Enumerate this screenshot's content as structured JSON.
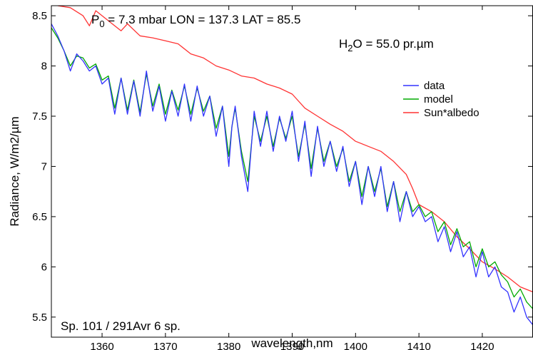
{
  "chart_data": {
    "type": "line",
    "title": "",
    "xlabel": "wavelength,nm",
    "ylabel": "Radiance, W/m2/µm",
    "xlim": [
      1352,
      1428
    ],
    "ylim": [
      5.3,
      8.6
    ],
    "xticks": [
      1360,
      1370,
      1380,
      1390,
      1400,
      1410,
      1420
    ],
    "yticks": [
      5.5,
      6,
      6.5,
      7,
      7.5,
      8,
      8.5
    ],
    "grid": false,
    "legend_position": "right",
    "annotations": {
      "p0_symbol": "P",
      "p0_sub": "0",
      "p0_rest": " = 7.3 mbar LON = 137.3 LAT = 85.5",
      "h2o_symbol": "H",
      "h2o_sub": "2",
      "h2o_rest": "O = 55.0 pr.µm",
      "spectrum_note": "Sp. 101 / 291Avr 6 sp."
    },
    "series": [
      {
        "name": "data",
        "color": "#3333ff",
        "points": [
          [
            1352,
            8.42
          ],
          [
            1353,
            8.3
          ],
          [
            1354,
            8.15
          ],
          [
            1355,
            7.95
          ],
          [
            1356,
            8.12
          ],
          [
            1357,
            8.05
          ],
          [
            1358,
            7.95
          ],
          [
            1359,
            8.0
          ],
          [
            1360,
            7.82
          ],
          [
            1361,
            7.88
          ],
          [
            1362,
            7.52
          ],
          [
            1363,
            7.88
          ],
          [
            1364,
            7.52
          ],
          [
            1365,
            7.85
          ],
          [
            1366,
            7.5
          ],
          [
            1367,
            7.95
          ],
          [
            1368,
            7.55
          ],
          [
            1369,
            7.8
          ],
          [
            1370,
            7.45
          ],
          [
            1371,
            7.75
          ],
          [
            1372,
            7.5
          ],
          [
            1373,
            7.82
          ],
          [
            1374,
            7.45
          ],
          [
            1375,
            7.8
          ],
          [
            1376,
            7.5
          ],
          [
            1377,
            7.7
          ],
          [
            1378,
            7.3
          ],
          [
            1379,
            7.6
          ],
          [
            1380,
            7.0
          ],
          [
            1380.5,
            7.4
          ],
          [
            1381,
            7.6
          ],
          [
            1382,
            7.1
          ],
          [
            1383,
            6.75
          ],
          [
            1384,
            7.55
          ],
          [
            1385,
            7.2
          ],
          [
            1386,
            7.55
          ],
          [
            1387,
            7.15
          ],
          [
            1388,
            7.5
          ],
          [
            1389,
            7.25
          ],
          [
            1390,
            7.55
          ],
          [
            1391,
            7.05
          ],
          [
            1392,
            7.45
          ],
          [
            1393,
            6.9
          ],
          [
            1394,
            7.4
          ],
          [
            1395,
            7.0
          ],
          [
            1396,
            7.25
          ],
          [
            1397,
            6.95
          ],
          [
            1398,
            7.2
          ],
          [
            1399,
            6.8
          ],
          [
            1400,
            7.05
          ],
          [
            1401,
            6.62
          ],
          [
            1402,
            7.0
          ],
          [
            1403,
            6.7
          ],
          [
            1404,
            7.0
          ],
          [
            1405,
            6.55
          ],
          [
            1406,
            6.85
          ],
          [
            1407,
            6.45
          ],
          [
            1408,
            6.75
          ],
          [
            1409,
            6.5
          ],
          [
            1410,
            6.6
          ],
          [
            1411,
            6.45
          ],
          [
            1412,
            6.5
          ],
          [
            1413,
            6.25
          ],
          [
            1414,
            6.4
          ],
          [
            1415,
            6.15
          ],
          [
            1416,
            6.35
          ],
          [
            1417,
            6.1
          ],
          [
            1418,
            6.2
          ],
          [
            1419,
            5.9
          ],
          [
            1420,
            6.15
          ],
          [
            1421,
            5.9
          ],
          [
            1422,
            6.0
          ],
          [
            1423,
            5.8
          ],
          [
            1424,
            5.75
          ],
          [
            1425,
            5.55
          ],
          [
            1426,
            5.7
          ],
          [
            1427,
            5.5
          ],
          [
            1428,
            5.42
          ]
        ]
      },
      {
        "name": "model",
        "color": "#00aa00",
        "points": [
          [
            1352,
            8.38
          ],
          [
            1353,
            8.28
          ],
          [
            1354,
            8.15
          ],
          [
            1355,
            8.0
          ],
          [
            1356,
            8.1
          ],
          [
            1357,
            8.08
          ],
          [
            1358,
            7.98
          ],
          [
            1359,
            8.02
          ],
          [
            1360,
            7.86
          ],
          [
            1361,
            7.9
          ],
          [
            1362,
            7.58
          ],
          [
            1363,
            7.88
          ],
          [
            1364,
            7.56
          ],
          [
            1365,
            7.86
          ],
          [
            1366,
            7.54
          ],
          [
            1367,
            7.92
          ],
          [
            1368,
            7.6
          ],
          [
            1369,
            7.82
          ],
          [
            1370,
            7.52
          ],
          [
            1371,
            7.76
          ],
          [
            1372,
            7.56
          ],
          [
            1373,
            7.8
          ],
          [
            1374,
            7.52
          ],
          [
            1375,
            7.78
          ],
          [
            1376,
            7.55
          ],
          [
            1377,
            7.7
          ],
          [
            1378,
            7.38
          ],
          [
            1379,
            7.6
          ],
          [
            1380,
            7.1
          ],
          [
            1380.5,
            7.4
          ],
          [
            1381,
            7.58
          ],
          [
            1382,
            7.15
          ],
          [
            1383,
            6.85
          ],
          [
            1384,
            7.5
          ],
          [
            1385,
            7.25
          ],
          [
            1386,
            7.5
          ],
          [
            1387,
            7.2
          ],
          [
            1388,
            7.48
          ],
          [
            1389,
            7.28
          ],
          [
            1390,
            7.5
          ],
          [
            1391,
            7.1
          ],
          [
            1392,
            7.42
          ],
          [
            1393,
            6.98
          ],
          [
            1394,
            7.38
          ],
          [
            1395,
            7.05
          ],
          [
            1396,
            7.25
          ],
          [
            1397,
            7.0
          ],
          [
            1398,
            7.18
          ],
          [
            1399,
            6.85
          ],
          [
            1400,
            7.05
          ],
          [
            1401,
            6.7
          ],
          [
            1402,
            7.0
          ],
          [
            1403,
            6.75
          ],
          [
            1404,
            6.98
          ],
          [
            1405,
            6.6
          ],
          [
            1406,
            6.85
          ],
          [
            1407,
            6.55
          ],
          [
            1408,
            6.75
          ],
          [
            1409,
            6.55
          ],
          [
            1410,
            6.62
          ],
          [
            1411,
            6.5
          ],
          [
            1412,
            6.55
          ],
          [
            1413,
            6.35
          ],
          [
            1414,
            6.45
          ],
          [
            1415,
            6.22
          ],
          [
            1416,
            6.38
          ],
          [
            1417,
            6.2
          ],
          [
            1418,
            6.25
          ],
          [
            1419,
            6.0
          ],
          [
            1420,
            6.18
          ],
          [
            1421,
            6.0
          ],
          [
            1422,
            6.05
          ],
          [
            1423,
            5.92
          ],
          [
            1424,
            5.85
          ],
          [
            1425,
            5.7
          ],
          [
            1426,
            5.78
          ],
          [
            1427,
            5.65
          ],
          [
            1428,
            5.58
          ]
        ]
      },
      {
        "name": "Sun*albedo",
        "color": "#ff3333",
        "points": [
          [
            1353,
            8.6
          ],
          [
            1355,
            8.58
          ],
          [
            1357,
            8.5
          ],
          [
            1358,
            8.4
          ],
          [
            1359,
            8.55
          ],
          [
            1361,
            8.45
          ],
          [
            1363,
            8.35
          ],
          [
            1364,
            8.42
          ],
          [
            1366,
            8.3
          ],
          [
            1368,
            8.28
          ],
          [
            1370,
            8.25
          ],
          [
            1372,
            8.22
          ],
          [
            1374,
            8.12
          ],
          [
            1376,
            8.08
          ],
          [
            1378,
            8.0
          ],
          [
            1380,
            7.96
          ],
          [
            1382,
            7.9
          ],
          [
            1384,
            7.88
          ],
          [
            1386,
            7.82
          ],
          [
            1388,
            7.78
          ],
          [
            1390,
            7.72
          ],
          [
            1392,
            7.58
          ],
          [
            1394,
            7.5
          ],
          [
            1396,
            7.42
          ],
          [
            1398,
            7.35
          ],
          [
            1400,
            7.25
          ],
          [
            1402,
            7.2
          ],
          [
            1404,
            7.15
          ],
          [
            1406,
            7.05
          ],
          [
            1408,
            6.92
          ],
          [
            1409,
            6.78
          ],
          [
            1410,
            6.62
          ],
          [
            1412,
            6.55
          ],
          [
            1414,
            6.45
          ],
          [
            1416,
            6.3
          ],
          [
            1418,
            6.18
          ],
          [
            1420,
            6.05
          ],
          [
            1422,
            5.98
          ],
          [
            1424,
            5.9
          ],
          [
            1426,
            5.8
          ],
          [
            1428,
            5.75
          ]
        ]
      }
    ]
  }
}
